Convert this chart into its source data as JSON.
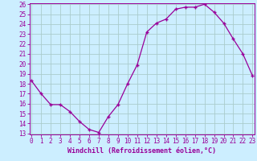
{
  "x": [
    0,
    1,
    2,
    3,
    4,
    5,
    6,
    7,
    8,
    9,
    10,
    11,
    12,
    13,
    14,
    15,
    16,
    17,
    18,
    19,
    20,
    21,
    22,
    23
  ],
  "y": [
    18.3,
    17.0,
    15.9,
    15.9,
    15.2,
    14.2,
    13.4,
    13.1,
    14.7,
    15.9,
    18.0,
    19.9,
    23.2,
    24.1,
    24.5,
    25.5,
    25.7,
    25.7,
    26.0,
    25.2,
    24.1,
    22.5,
    21.0,
    18.8
  ],
  "line_color": "#990099",
  "marker": "+",
  "bg_color": "#cceeff",
  "grid_color": "#aacccc",
  "xlabel": "Windchill (Refroidissement éolien,°C)",
  "xlabel_color": "#990099",
  "tick_color": "#990099",
  "ylim_min": 13,
  "ylim_max": 26,
  "xlim_min": 0,
  "xlim_max": 23,
  "yticks": [
    13,
    14,
    15,
    16,
    17,
    18,
    19,
    20,
    21,
    22,
    23,
    24,
    25,
    26
  ],
  "xticks": [
    0,
    1,
    2,
    3,
    4,
    5,
    6,
    7,
    8,
    9,
    10,
    11,
    12,
    13,
    14,
    15,
    16,
    17,
    18,
    19,
    20,
    21,
    22,
    23
  ],
  "tick_fontsize": 5.5,
  "xlabel_fontsize": 6.0
}
